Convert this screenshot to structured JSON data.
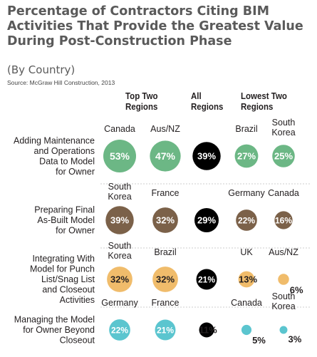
{
  "title_lines": [
    "Percentage of Contractors Citing BIM",
    "Activities That Provide the Greatest Value",
    "During Post-Construction Phase"
  ],
  "subtitle": "(By Country)",
  "source": "Source: McGraw Hill Construction, 2013",
  "column_headers": {
    "top_two": [
      "Top Two",
      "Regions"
    ],
    "all": [
      "All",
      "Regions"
    ],
    "lowest_two": [
      "Lowest Two",
      "Regions"
    ]
  },
  "chart_data": {
    "type": "bubble-matrix",
    "value_unit": "%",
    "rows": [
      {
        "label": [
          "Adding Maintenance",
          "and Operations",
          "Data to Model",
          "for Owner"
        ],
        "color": "#6cb785",
        "top_two": [
          {
            "country": "Canada",
            "value": 53
          },
          {
            "country": "Aus/NZ",
            "value": 47
          }
        ],
        "all_regions": 39,
        "lowest_two": [
          {
            "country": "Brazil",
            "value": 27
          },
          {
            "country": "South Korea",
            "value": 25
          }
        ]
      },
      {
        "label": [
          "Preparing Final",
          "As-Built Model",
          "for Owner"
        ],
        "color": "#7b6149",
        "top_two": [
          {
            "country": "South Korea",
            "value": 39
          },
          {
            "country": "France",
            "value": 32
          }
        ],
        "all_regions": 29,
        "lowest_two": [
          {
            "country": "Germany",
            "value": 22
          },
          {
            "country": "Canada",
            "value": 16
          }
        ]
      },
      {
        "label": [
          "Integrating With",
          "Model for Punch",
          "List/Snag List",
          "and Closeout",
          "Activities"
        ],
        "color": "#f0bc6b",
        "top_two": [
          {
            "country": "South Korea",
            "value": 32
          },
          {
            "country": "Brazil",
            "value": 32
          }
        ],
        "all_regions": 21,
        "lowest_two": [
          {
            "country": "UK",
            "value": 13
          },
          {
            "country": "Aus/NZ",
            "value": 6
          }
        ]
      },
      {
        "label": [
          "Managing the Model",
          "for Owner Beyond",
          "Closeout"
        ],
        "color": "#5bc5cf",
        "top_two": [
          {
            "country": "Germany",
            "value": 22
          },
          {
            "country": "France",
            "value": 21
          }
        ],
        "all_regions": 11,
        "lowest_two": [
          {
            "country": "Canada",
            "value": 5
          },
          {
            "country": "South Korea",
            "value": 3
          }
        ]
      }
    ],
    "all_regions_color": "#000000"
  }
}
